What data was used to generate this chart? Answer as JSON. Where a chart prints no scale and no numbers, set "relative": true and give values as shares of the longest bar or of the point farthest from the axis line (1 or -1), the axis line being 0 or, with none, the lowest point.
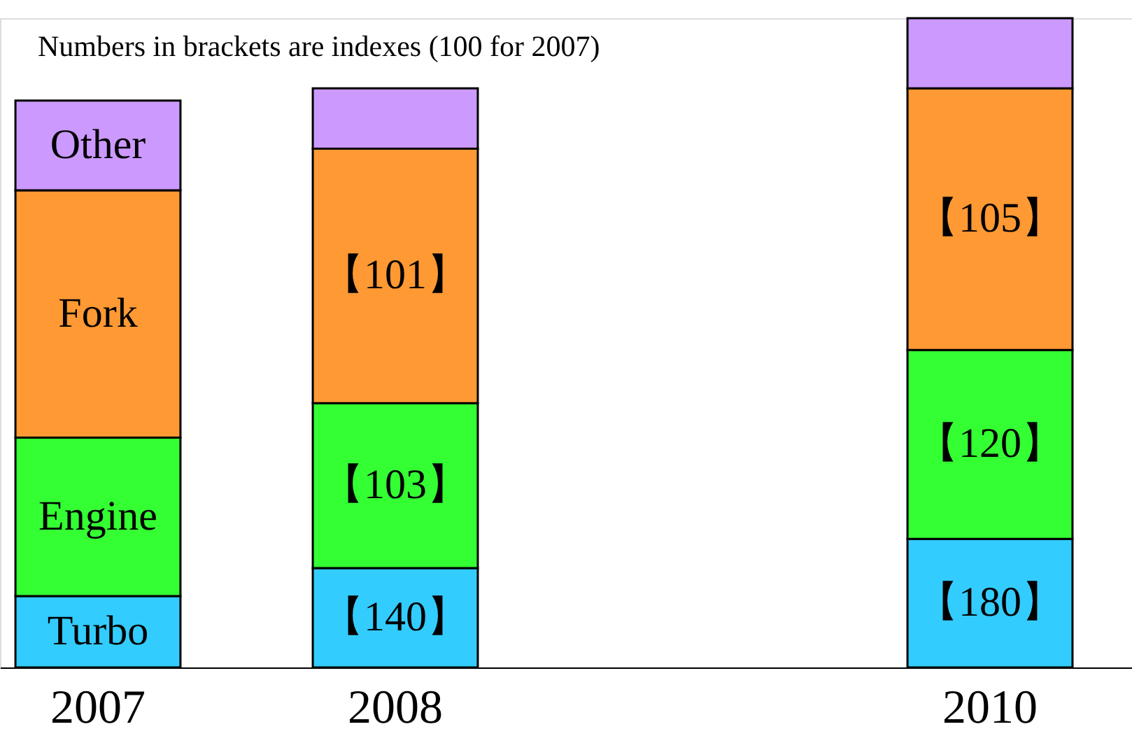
{
  "chart_data": {
    "type": "bar",
    "stacked": true,
    "relative": true,
    "categories": [
      "2007",
      "2008",
      null,
      "2010"
    ],
    "series": [
      {
        "name": "Turbo",
        "color": "#33ccff",
        "values": [
          0.11,
          0.153,
          null,
          0.198
        ]
      },
      {
        "name": "Engine",
        "color": "#33ff33",
        "values": [
          0.244,
          0.254,
          null,
          0.291
        ]
      },
      {
        "name": "Fork",
        "color": "#ff9933",
        "values": [
          0.381,
          0.392,
          null,
          0.403
        ]
      },
      {
        "name": "Other",
        "color": "#cc99ff",
        "values": [
          0.138,
          0.093,
          null,
          0.108
        ]
      }
    ],
    "annotations": [
      "Numbers in brackets are indexes (100 for 2007)",
      {
        "text": "【140】",
        "x": "2008",
        "y": 0.153
      },
      {
        "text": "【103】",
        "x": "2008",
        "y": 0.407
      },
      {
        "text": "【101】",
        "x": "2008",
        "y": 0.799
      },
      {
        "text": "【180】",
        "x": "2010",
        "y": 0.198
      },
      {
        "text": "【120】",
        "x": "2010",
        "y": 0.489
      },
      {
        "text": "【105】",
        "x": "2010",
        "y": 0.892
      }
    ]
  }
}
